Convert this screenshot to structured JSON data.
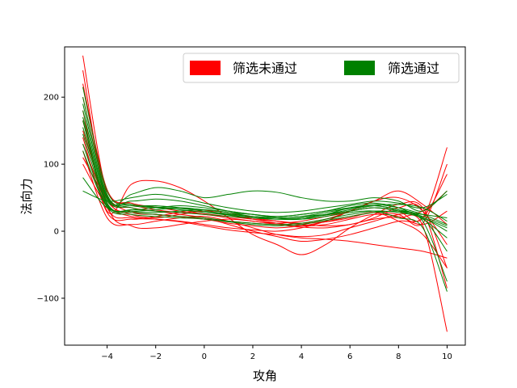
{
  "chart_data": {
    "type": "line",
    "title": "",
    "xlabel": "攻角",
    "ylabel": "法向力",
    "xlim": [
      -5.75,
      10.75
    ],
    "ylim": [
      -170,
      275
    ],
    "xticks": [
      -4,
      -2,
      0,
      2,
      4,
      6,
      8,
      10
    ],
    "yticks": [
      -100,
      0,
      100,
      200
    ],
    "grid": false,
    "legend": {
      "placement": "top-right",
      "columns": 2
    },
    "groups": [
      {
        "name": "筛选未通过",
        "color": "#ff0000"
      },
      {
        "name": "筛选通过",
        "color": "#008000"
      }
    ],
    "x_sample": [
      -5,
      -4,
      -3,
      -2,
      -1,
      0,
      1,
      2,
      3,
      4,
      5,
      6,
      7,
      8,
      9,
      10
    ],
    "series": [
      {
        "group": "筛选未通过",
        "values": [
          262,
          55,
          30,
          25,
          22,
          18,
          12,
          8,
          5,
          8,
          14,
          22,
          28,
          25,
          12,
          100
        ]
      },
      {
        "group": "筛选未通过",
        "values": [
          240,
          40,
          8,
          5,
          10,
          15,
          18,
          15,
          10,
          6,
          5,
          10,
          18,
          20,
          8,
          -150
        ]
      },
      {
        "group": "筛选未通过",
        "values": [
          200,
          60,
          40,
          32,
          28,
          25,
          20,
          15,
          12,
          15,
          22,
          30,
          35,
          30,
          20,
          125
        ]
      },
      {
        "group": "筛选未通过",
        "values": [
          180,
          30,
          70,
          75,
          65,
          45,
          20,
          -5,
          -20,
          -35,
          -20,
          5,
          25,
          40,
          35,
          -55
        ]
      },
      {
        "group": "筛选未通过",
        "values": [
          150,
          48,
          35,
          30,
          25,
          20,
          10,
          0,
          -8,
          -15,
          -12,
          -5,
          5,
          15,
          20,
          85
        ]
      },
      {
        "group": "筛选未通过",
        "values": [
          130,
          45,
          25,
          20,
          25,
          30,
          28,
          20,
          15,
          10,
          8,
          10,
          20,
          35,
          30,
          -85
        ]
      },
      {
        "group": "筛选未通过",
        "values": [
          120,
          20,
          10,
          15,
          20,
          22,
          15,
          5,
          -5,
          -10,
          -12,
          -15,
          -20,
          -25,
          -30,
          -40
        ]
      },
      {
        "group": "筛选未通过",
        "values": [
          110,
          50,
          28,
          25,
          22,
          18,
          15,
          12,
          10,
          12,
          18,
          30,
          45,
          60,
          40,
          10
        ]
      },
      {
        "group": "筛选未通过",
        "values": [
          165,
          35,
          20,
          18,
          15,
          10,
          5,
          2,
          0,
          5,
          15,
          30,
          45,
          50,
          30,
          -20
        ]
      },
      {
        "group": "筛选未通过",
        "values": [
          100,
          38,
          22,
          18,
          14,
          8,
          2,
          -2,
          -5,
          -8,
          -5,
          5,
          15,
          25,
          30,
          60
        ]
      },
      {
        "group": "筛选未通过",
        "values": [
          220,
          62,
          42,
          36,
          30,
          26,
          22,
          18,
          15,
          12,
          14,
          20,
          28,
          15,
          -5,
          -55
        ]
      },
      {
        "group": "筛选未通过",
        "values": [
          140,
          28,
          18,
          22,
          28,
          30,
          25,
          18,
          12,
          8,
          10,
          18,
          25,
          22,
          10,
          30
        ]
      },
      {
        "group": "筛选通过",
        "values": [
          215,
          60,
          40,
          38,
          35,
          30,
          25,
          22,
          20,
          22,
          25,
          30,
          35,
          30,
          20,
          5
        ]
      },
      {
        "group": "筛选通过",
        "values": [
          200,
          55,
          35,
          30,
          28,
          25,
          22,
          20,
          18,
          20,
          25,
          35,
          40,
          35,
          25,
          10
        ]
      },
      {
        "group": "筛选通过",
        "values": [
          180,
          50,
          45,
          48,
          45,
          38,
          30,
          25,
          20,
          18,
          22,
          28,
          30,
          20,
          5,
          -90
        ]
      },
      {
        "group": "筛选通过",
        "values": [
          165,
          45,
          55,
          65,
          60,
          50,
          55,
          60,
          58,
          50,
          45,
          45,
          50,
          45,
          30,
          60
        ]
      },
      {
        "group": "筛选通过",
        "values": [
          155,
          42,
          30,
          28,
          30,
          32,
          28,
          22,
          18,
          18,
          25,
          32,
          38,
          40,
          35,
          15
        ]
      },
      {
        "group": "筛选通过",
        "values": [
          145,
          40,
          28,
          25,
          22,
          20,
          15,
          12,
          10,
          12,
          18,
          25,
          30,
          28,
          20,
          0
        ]
      },
      {
        "group": "筛选通过",
        "values": [
          130,
          38,
          32,
          35,
          38,
          35,
          30,
          25,
          22,
          25,
          30,
          38,
          42,
          35,
          18,
          -10
        ]
      },
      {
        "group": "筛选通过",
        "values": [
          120,
          36,
          25,
          22,
          20,
          18,
          14,
          10,
          8,
          10,
          16,
          22,
          28,
          30,
          25,
          20
        ]
      },
      {
        "group": "筛选通过",
        "values": [
          80,
          35,
          30,
          32,
          35,
          32,
          28,
          25,
          22,
          25,
          30,
          35,
          38,
          32,
          20,
          -30
        ]
      },
      {
        "group": "筛选通过",
        "values": [
          60,
          45,
          50,
          55,
          50,
          42,
          35,
          30,
          28,
          30,
          35,
          40,
          45,
          42,
          35,
          55
        ]
      },
      {
        "group": "筛选通过",
        "values": [
          170,
          48,
          38,
          35,
          32,
          28,
          24,
          20,
          18,
          20,
          24,
          30,
          35,
          30,
          15,
          -75
        ]
      },
      {
        "group": "筛选通过",
        "values": [
          190,
          52,
          40,
          36,
          34,
          30,
          26,
          22,
          20,
          22,
          28,
          34,
          38,
          32,
          22,
          8
        ]
      }
    ]
  }
}
